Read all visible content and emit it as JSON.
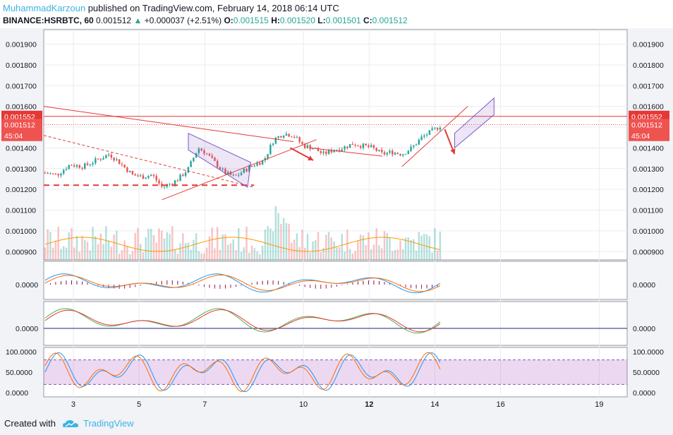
{
  "header": {
    "author": "MuhammadKarzoun",
    "published": "published on TradingView.com, February 14, 2018 06:14 UTC",
    "symbol": "BINANCE:HSRBTC, 60",
    "last": "0.001512",
    "change_arrow": "▲",
    "change": "+0.000037 (+2.51%)",
    "o_label": "O:",
    "o": "0.001515",
    "h_label": "H:",
    "h": "0.001520",
    "l_label": "L:",
    "l": "0.001501",
    "c_label": "C:",
    "c": "0.001512"
  },
  "footer": {
    "created": "Created with",
    "brand": "TradingView",
    "logo_icon": "tradingview-cloud-icon"
  },
  "colors": {
    "up": "#26a69a",
    "down": "#ef5350",
    "accent": "#3bb3e4",
    "line_red": "#e53935",
    "channel": "#7e57c2"
  },
  "chart_data": {
    "type": "candlestick",
    "price_axis": {
      "ylim": [
        0.00086,
        0.00197
      ],
      "ticks": [
        "0.001900",
        "0.001800",
        "0.001700",
        "0.001600",
        "0.001500",
        "0.001400",
        "0.001300",
        "0.001200",
        "0.001100",
        "0.001000",
        "0.000900"
      ]
    },
    "price_labels": [
      {
        "text": "0.001552",
        "value": 0.001552,
        "color": "#e53935"
      },
      {
        "text": "0.001512",
        "value": 0.001512,
        "color": "#ef5350"
      },
      {
        "text": "45:04",
        "value": 0.00146,
        "color": "#ef5350"
      }
    ],
    "x_axis": {
      "ticks": [
        {
          "label": "3",
          "day": 3
        },
        {
          "label": "5",
          "day": 5
        },
        {
          "label": "7",
          "day": 7
        },
        {
          "label": "10",
          "day": 10
        },
        {
          "label": "12",
          "day": 12
        },
        {
          "label": "14",
          "day": 14
        },
        {
          "label": "16",
          "day": 16
        },
        {
          "label": "19",
          "day": 19
        }
      ],
      "xlim": [
        2.1,
        19.85
      ]
    },
    "price_path": [
      [
        2.1,
        0.00128
      ],
      [
        2.5,
        0.00127
      ],
      [
        2.9,
        0.00132
      ],
      [
        3.3,
        0.00131
      ],
      [
        3.7,
        0.00134
      ],
      [
        4.1,
        0.00137
      ],
      [
        4.4,
        0.00133
      ],
      [
        4.8,
        0.00127
      ],
      [
        5.1,
        0.00126
      ],
      [
        5.4,
        0.00127
      ],
      [
        5.7,
        0.00121
      ],
      [
        6.0,
        0.00123
      ],
      [
        6.2,
        0.00125
      ],
      [
        6.5,
        0.0013
      ],
      [
        6.8,
        0.0014
      ],
      [
        7.0,
        0.00138
      ],
      [
        7.3,
        0.00133
      ],
      [
        7.6,
        0.00128
      ],
      [
        7.9,
        0.00126
      ],
      [
        8.2,
        0.00129
      ],
      [
        8.5,
        0.00132
      ],
      [
        8.8,
        0.00134
      ],
      [
        9.1,
        0.00144
      ],
      [
        9.4,
        0.00147
      ],
      [
        9.7,
        0.00146
      ],
      [
        10.0,
        0.00141
      ],
      [
        10.3,
        0.0014
      ],
      [
        10.6,
        0.00137
      ],
      [
        10.9,
        0.00139
      ],
      [
        11.2,
        0.0014
      ],
      [
        11.5,
        0.00142
      ],
      [
        11.8,
        0.00141
      ],
      [
        12.1,
        0.0014
      ],
      [
        12.4,
        0.00137
      ],
      [
        12.7,
        0.00138
      ],
      [
        13.0,
        0.00137
      ],
      [
        13.3,
        0.0014
      ],
      [
        13.6,
        0.00145
      ],
      [
        13.9,
        0.00148
      ],
      [
        14.2,
        0.00151
      ]
    ],
    "drawings": [
      {
        "type": "line",
        "from": [
          2.1,
          0.0016
        ],
        "to": [
          9.7,
          0.00143
        ],
        "color": "#e53935"
      },
      {
        "type": "line",
        "from": [
          5.7,
          0.00115
        ],
        "to": [
          10.4,
          0.00144
        ],
        "color": "#e53935"
      },
      {
        "type": "dashed",
        "from": [
          2.1,
          0.00146
        ],
        "to": [
          8.5,
          0.00121
        ],
        "color": "#e53935"
      },
      {
        "type": "dashed-level",
        "from": [
          2.1,
          0.00122
        ],
        "to": [
          8.5,
          0.00122
        ],
        "color": "#e53935"
      },
      {
        "type": "line",
        "from": [
          10.2,
          0.0014
        ],
        "to": [
          12.4,
          0.00136
        ],
        "color": "#e53935"
      },
      {
        "type": "line",
        "from": [
          13.0,
          0.00131
        ],
        "to": [
          15.0,
          0.0016
        ],
        "color": "#e53935"
      },
      {
        "type": "hline",
        "value": 0.001552,
        "color": "#e53935"
      },
      {
        "type": "hline-dotted",
        "value": 0.001512,
        "color": "#ef5350"
      },
      {
        "type": "arrow",
        "from": [
          9.6,
          0.0014
        ],
        "to": [
          10.3,
          0.00134
        ],
        "color": "#e53935"
      },
      {
        "type": "arrow",
        "from": [
          14.3,
          0.00149
        ],
        "to": [
          14.6,
          0.00137
        ],
        "color": "#e53935"
      },
      {
        "type": "channel",
        "points": [
          [
            6.5,
            0.00147
          ],
          [
            8.4,
            0.00133
          ],
          [
            8.3,
            0.00121
          ],
          [
            6.5,
            0.00139
          ]
        ],
        "color": "#7e57c2"
      },
      {
        "type": "channel",
        "points": [
          [
            14.6,
            0.0014
          ],
          [
            15.8,
            0.00156
          ],
          [
            15.8,
            0.00164
          ],
          [
            14.6,
            0.00147
          ]
        ],
        "color": "#7e57c2"
      }
    ],
    "panes": [
      {
        "name": "macd",
        "ticks": [
          "0.0000"
        ]
      },
      {
        "name": "oscillator",
        "ticks": [
          "0.0000"
        ]
      },
      {
        "name": "stochastic-rsi",
        "ticks": [
          "100.0000",
          "50.0000",
          "0.0000"
        ],
        "band": [
          20,
          80
        ]
      }
    ]
  }
}
